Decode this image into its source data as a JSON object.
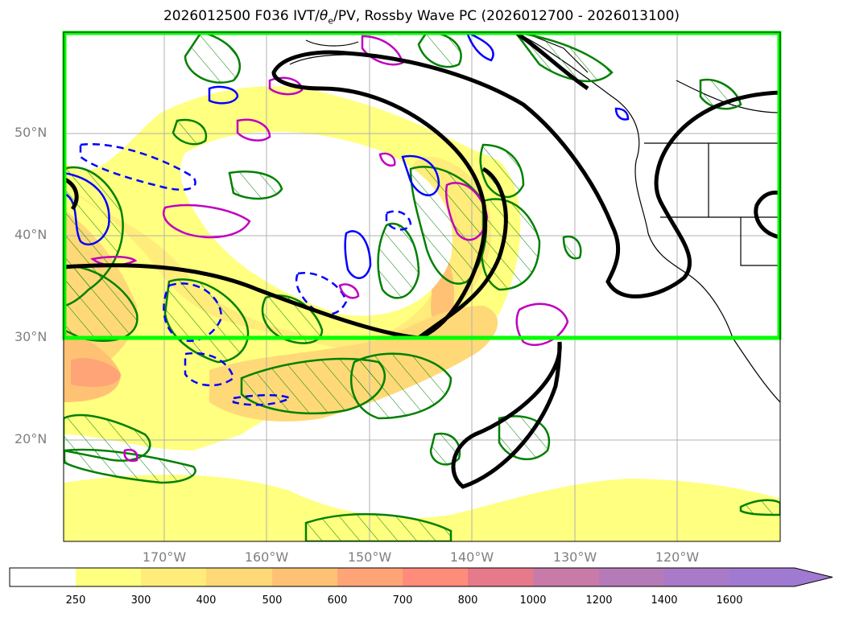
{
  "title": {
    "prefix": "2026012500 F036 IVT/",
    "theta": "θ",
    "theta_sub": "e",
    "suffix": "/PV, Rossby Wave PC (2026012700 - 2026013100)"
  },
  "map": {
    "lat_labels": [
      "50°N",
      "40°N",
      "30°N",
      "20°N"
    ],
    "lon_labels": [
      "170°W",
      "160°W",
      "150°W",
      "140°W",
      "130°W",
      "120°W"
    ],
    "highlight_box_color": "#00ff00",
    "ivt_colors": [
      "#ffff80",
      "#ffec7a",
      "#ffd977",
      "#ffc275",
      "#ffa477",
      "#ff8c7a",
      "#e67a8a",
      "#c87aa8",
      "#a97ac7"
    ],
    "contours": {
      "pv_hatched": "#008000",
      "theta_e_solid": "#0000ff",
      "theta_e_dashed": "#0000ff",
      "magenta": "#c000c0",
      "rossby_pc": "#000000"
    }
  },
  "colorbar": {
    "ticks": [
      "250",
      "300",
      "400",
      "500",
      "600",
      "700",
      "800",
      "1000",
      "1200",
      "1400",
      "1600"
    ],
    "colors": [
      "#ffffff",
      "#ffff80",
      "#ffec7a",
      "#ffd977",
      "#ffc275",
      "#ffa477",
      "#ff8c7a",
      "#e67a8a",
      "#c87aa8",
      "#a97ac7"
    ]
  }
}
